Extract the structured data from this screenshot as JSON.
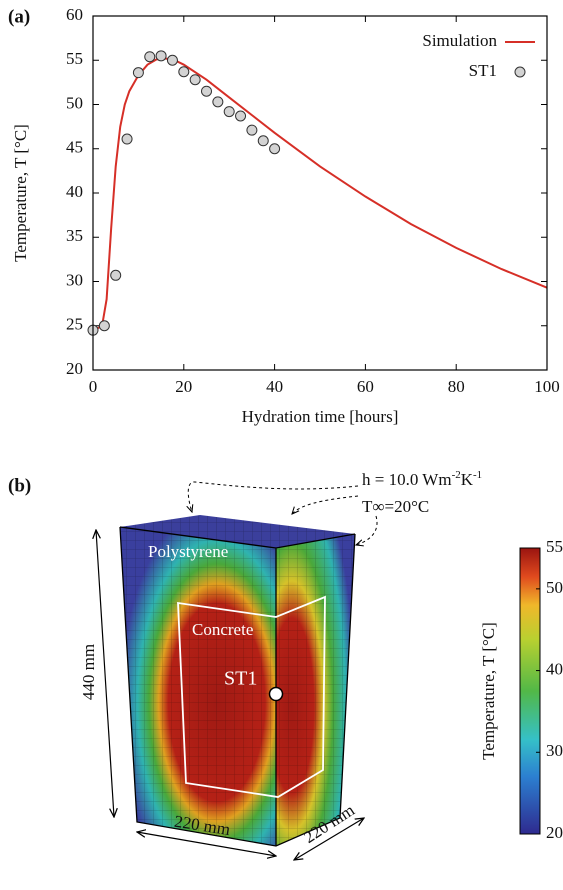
{
  "chart_data": {
    "type": "line",
    "panel_label": "(a)",
    "x_label": "Hydration time [hours]",
    "y_label": "Temperature, T [°C]",
    "xlim": [
      0,
      100
    ],
    "xticks": [
      0,
      20,
      40,
      60,
      80,
      100
    ],
    "ylim": [
      20,
      60
    ],
    "yticks": [
      20,
      25,
      30,
      35,
      40,
      45,
      50,
      55,
      60
    ],
    "legend": "upper right",
    "series": [
      {
        "name": "Simulation",
        "type": "line",
        "color": "#d62f27",
        "x": [
          0,
          1,
          2,
          3,
          4,
          5,
          6,
          7,
          8,
          10,
          12,
          14,
          16,
          18,
          20,
          25,
          30,
          35,
          40,
          50,
          60,
          70,
          80,
          90,
          100
        ],
        "values": [
          24.5,
          24.7,
          25,
          28,
          36,
          43,
          47.5,
          50,
          51.5,
          53.3,
          54.5,
          55.1,
          55.2,
          55,
          54.5,
          52.8,
          50.8,
          48.8,
          46.8,
          43,
          39.6,
          36.5,
          33.8,
          31.4,
          29.3
        ]
      },
      {
        "name": "ST1",
        "type": "scatter",
        "color": "#d3d3d3",
        "x": [
          0,
          2.5,
          5,
          7.5,
          10,
          12.5,
          15,
          17.5,
          20,
          22.5,
          25,
          27.5,
          30,
          32.5,
          35,
          37.5,
          40
        ],
        "values": [
          24.5,
          25,
          30.7,
          46.1,
          53.6,
          55.4,
          55.5,
          55,
          53.7,
          52.8,
          51.5,
          50.3,
          49.2,
          48.7,
          47.1,
          45.9,
          45
        ]
      }
    ]
  },
  "panel_b": {
    "label": "(b)",
    "h_label": [
      "h = 10.0 Wm",
      "-2",
      "K",
      "-1"
    ],
    "t_ambient": "T∞=20°C",
    "outer_material": "Polystyrene",
    "inner_material": "Concrete",
    "sensor": "ST1",
    "height": "440 mm",
    "width": "220 mm",
    "depth": "220 mm",
    "colorbar": {
      "label": "Temperature, T [°C]",
      "lim": [
        20,
        55
      ],
      "ticks": [
        20,
        30,
        40,
        50,
        55
      ]
    }
  }
}
